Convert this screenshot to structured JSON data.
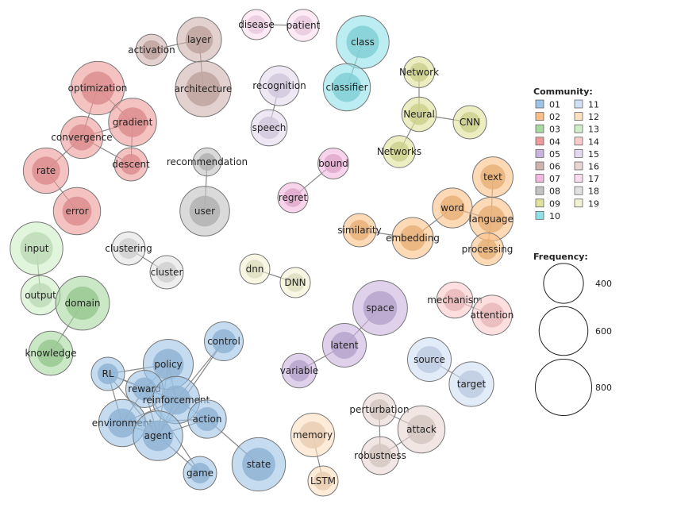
{
  "communities": [
    {
      "id": "01",
      "color": "#9dc3e6"
    },
    {
      "id": "02",
      "color": "#fbbf85"
    },
    {
      "id": "03",
      "color": "#a7d9a0"
    },
    {
      "id": "04",
      "color": "#ef9a9a"
    },
    {
      "id": "05",
      "color": "#c9b3df"
    },
    {
      "id": "06",
      "color": "#cfb3ad"
    },
    {
      "id": "07",
      "color": "#f4b8e0"
    },
    {
      "id": "08",
      "color": "#c2c2c2"
    },
    {
      "id": "09",
      "color": "#dfe29a"
    },
    {
      "id": "10",
      "color": "#8ee1e9"
    },
    {
      "id": "11",
      "color": "#cfdff4"
    },
    {
      "id": "12",
      "color": "#fde0c0"
    },
    {
      "id": "13",
      "color": "#cdeec7"
    },
    {
      "id": "14",
      "color": "#fbcaca"
    },
    {
      "id": "15",
      "color": "#e3d9ef"
    },
    {
      "id": "16",
      "color": "#e8d6d2"
    },
    {
      "id": "17",
      "color": "#fbdcef"
    },
    {
      "id": "18",
      "color": "#e2e2e2"
    },
    {
      "id": "19",
      "color": "#f1f2d2"
    }
  ],
  "legend": {
    "community_title": "Community:",
    "frequency_title": "Frequency:",
    "frequency_values": [
      400,
      600,
      800
    ]
  },
  "nodes": [
    {
      "id": "disease",
      "label": "disease",
      "community": "17",
      "freq": 230
    },
    {
      "id": "patient",
      "label": "patient",
      "community": "17",
      "freq": 260
    },
    {
      "id": "class",
      "label": "class",
      "community": "10",
      "freq": 700
    },
    {
      "id": "classifier",
      "label": "classifier",
      "community": "10",
      "freq": 560
    },
    {
      "id": "activation",
      "label": "activation",
      "community": "06",
      "freq": 250
    },
    {
      "id": "layer",
      "label": "layer",
      "community": "06",
      "freq": 500
    },
    {
      "id": "architecture",
      "label": "architecture",
      "community": "06",
      "freq": 780
    },
    {
      "id": "optimization",
      "label": "optimization",
      "community": "04",
      "freq": 720
    },
    {
      "id": "gradient",
      "label": "gradient",
      "community": "04",
      "freq": 580
    },
    {
      "id": "convergence",
      "label": "convergence",
      "community": "04",
      "freq": 450
    },
    {
      "id": "descent",
      "label": "descent",
      "community": "04",
      "freq": 280
    },
    {
      "id": "rate",
      "label": "rate",
      "community": "04",
      "freq": 520
    },
    {
      "id": "error",
      "label": "error",
      "community": "04",
      "freq": 560
    },
    {
      "id": "recognition",
      "label": "recognition",
      "community": "15",
      "freq": 400
    },
    {
      "id": "speech",
      "label": "speech",
      "community": "15",
      "freq": 330
    },
    {
      "id": "Network",
      "label": "Network",
      "community": "09",
      "freq": 240
    },
    {
      "id": "Neural",
      "label": "Neural",
      "community": "09",
      "freq": 300
    },
    {
      "id": "CNN",
      "label": "CNN",
      "community": "09",
      "freq": 280
    },
    {
      "id": "Networks",
      "label": "Networks",
      "community": "09",
      "freq": 260
    },
    {
      "id": "recommendation",
      "label": "recommendation",
      "community": "08",
      "freq": 200
    },
    {
      "id": "user",
      "label": "user",
      "community": "08",
      "freq": 620
    },
    {
      "id": "bound",
      "label": "bound",
      "community": "07",
      "freq": 240
    },
    {
      "id": "regret",
      "label": "regret",
      "community": "07",
      "freq": 230
    },
    {
      "id": "text",
      "label": "text",
      "community": "02",
      "freq": 410
    },
    {
      "id": "word",
      "label": "word",
      "community": "02",
      "freq": 400
    },
    {
      "id": "language",
      "label": "language",
      "community": "02",
      "freq": 480
    },
    {
      "id": "similarity",
      "label": "similarity",
      "community": "02",
      "freq": 280
    },
    {
      "id": "embedding",
      "label": "embedding",
      "community": "02",
      "freq": 430
    },
    {
      "id": "processing",
      "label": "processing",
      "community": "02",
      "freq": 270
    },
    {
      "id": "input",
      "label": "input",
      "community": "13",
      "freq": 700
    },
    {
      "id": "output",
      "label": "output",
      "community": "13",
      "freq": 390
    },
    {
      "id": "domain",
      "label": "domain",
      "community": "03",
      "freq": 730
    },
    {
      "id": "knowledge",
      "label": "knowledge",
      "community": "03",
      "freq": 490
    },
    {
      "id": "clustering",
      "label": "clustering",
      "community": "18",
      "freq": 280
    },
    {
      "id": "cluster",
      "label": "cluster",
      "community": "18",
      "freq": 280
    },
    {
      "id": "dnn",
      "label": "dnn",
      "community": "19",
      "freq": 230
    },
    {
      "id": "DNN",
      "label": "DNN",
      "community": "19",
      "freq": 230
    },
    {
      "id": "space",
      "label": "space",
      "community": "05",
      "freq": 750
    },
    {
      "id": "latent",
      "label": "latent",
      "community": "05",
      "freq": 480
    },
    {
      "id": "variable",
      "label": "variable",
      "community": "05",
      "freq": 300
    },
    {
      "id": "mechanism",
      "label": "mechanism",
      "community": "14",
      "freq": 330
    },
    {
      "id": "attention",
      "label": "attention",
      "community": "14",
      "freq": 400
    },
    {
      "id": "source",
      "label": "source",
      "community": "11",
      "freq": 480
    },
    {
      "id": "target",
      "label": "target",
      "community": "11",
      "freq": 500
    },
    {
      "id": "control",
      "label": "control",
      "community": "01",
      "freq": 380
    },
    {
      "id": "policy",
      "label": "policy",
      "community": "01",
      "freq": 630
    },
    {
      "id": "RL",
      "label": "RL",
      "community": "01",
      "freq": 280
    },
    {
      "id": "reward",
      "label": "reward",
      "community": "01",
      "freq": 350
    },
    {
      "id": "reinforcement",
      "label": "reinforcement",
      "community": "01",
      "freq": 560
    },
    {
      "id": "environment",
      "label": "environment",
      "community": "01",
      "freq": 560
    },
    {
      "id": "agent",
      "label": "agent",
      "community": "01",
      "freq": 620
    },
    {
      "id": "action",
      "label": "action",
      "community": "01",
      "freq": 370
    },
    {
      "id": "state",
      "label": "state",
      "community": "01",
      "freq": 720
    },
    {
      "id": "game",
      "label": "game",
      "community": "01",
      "freq": 280
    },
    {
      "id": "memory",
      "label": "memory",
      "community": "12",
      "freq": 480
    },
    {
      "id": "LSTM",
      "label": "LSTM",
      "community": "12",
      "freq": 230
    },
    {
      "id": "perturbation",
      "label": "perturbation",
      "community": "16",
      "freq": 280
    },
    {
      "id": "attack",
      "label": "attack",
      "community": "16",
      "freq": 560
    },
    {
      "id": "robustness",
      "label": "robustness",
      "community": "16",
      "freq": 360
    }
  ],
  "edges": [
    [
      "disease",
      "patient"
    ],
    [
      "class",
      "classifier"
    ],
    [
      "activation",
      "layer"
    ],
    [
      "layer",
      "architecture"
    ],
    [
      "optimization",
      "gradient"
    ],
    [
      "optimization",
      "convergence"
    ],
    [
      "gradient",
      "convergence"
    ],
    [
      "gradient",
      "descent"
    ],
    [
      "convergence",
      "descent"
    ],
    [
      "convergence",
      "rate"
    ],
    [
      "rate",
      "error"
    ],
    [
      "recognition",
      "speech"
    ],
    [
      "Network",
      "Neural"
    ],
    [
      "Neural",
      "CNN"
    ],
    [
      "Neural",
      "Networks"
    ],
    [
      "recommendation",
      "user"
    ],
    [
      "bound",
      "regret"
    ],
    [
      "text",
      "language"
    ],
    [
      "word",
      "language"
    ],
    [
      "word",
      "embedding"
    ],
    [
      "similarity",
      "embedding"
    ],
    [
      "language",
      "processing"
    ],
    [
      "input",
      "output"
    ],
    [
      "domain",
      "knowledge"
    ],
    [
      "clustering",
      "cluster"
    ],
    [
      "dnn",
      "DNN"
    ],
    [
      "space",
      "latent"
    ],
    [
      "latent",
      "variable"
    ],
    [
      "mechanism",
      "attention"
    ],
    [
      "source",
      "target"
    ],
    [
      "control",
      "reinforcement"
    ],
    [
      "control",
      "agent"
    ],
    [
      "policy",
      "RL"
    ],
    [
      "policy",
      "reward"
    ],
    [
      "policy",
      "reinforcement"
    ],
    [
      "policy",
      "agent"
    ],
    [
      "RL",
      "reward"
    ],
    [
      "RL",
      "reinforcement"
    ],
    [
      "RL",
      "environment"
    ],
    [
      "RL",
      "agent"
    ],
    [
      "reward",
      "reinforcement"
    ],
    [
      "reward",
      "environment"
    ],
    [
      "reward",
      "agent"
    ],
    [
      "reward",
      "game"
    ],
    [
      "reinforcement",
      "environment"
    ],
    [
      "reinforcement",
      "agent"
    ],
    [
      "reinforcement",
      "action"
    ],
    [
      "environment",
      "agent"
    ],
    [
      "environment",
      "action"
    ],
    [
      "agent",
      "action"
    ],
    [
      "agent",
      "game"
    ],
    [
      "action",
      "state"
    ],
    [
      "memory",
      "LSTM"
    ],
    [
      "perturbation",
      "attack"
    ],
    [
      "perturbation",
      "robustness"
    ],
    [
      "attack",
      "robustness"
    ]
  ]
}
